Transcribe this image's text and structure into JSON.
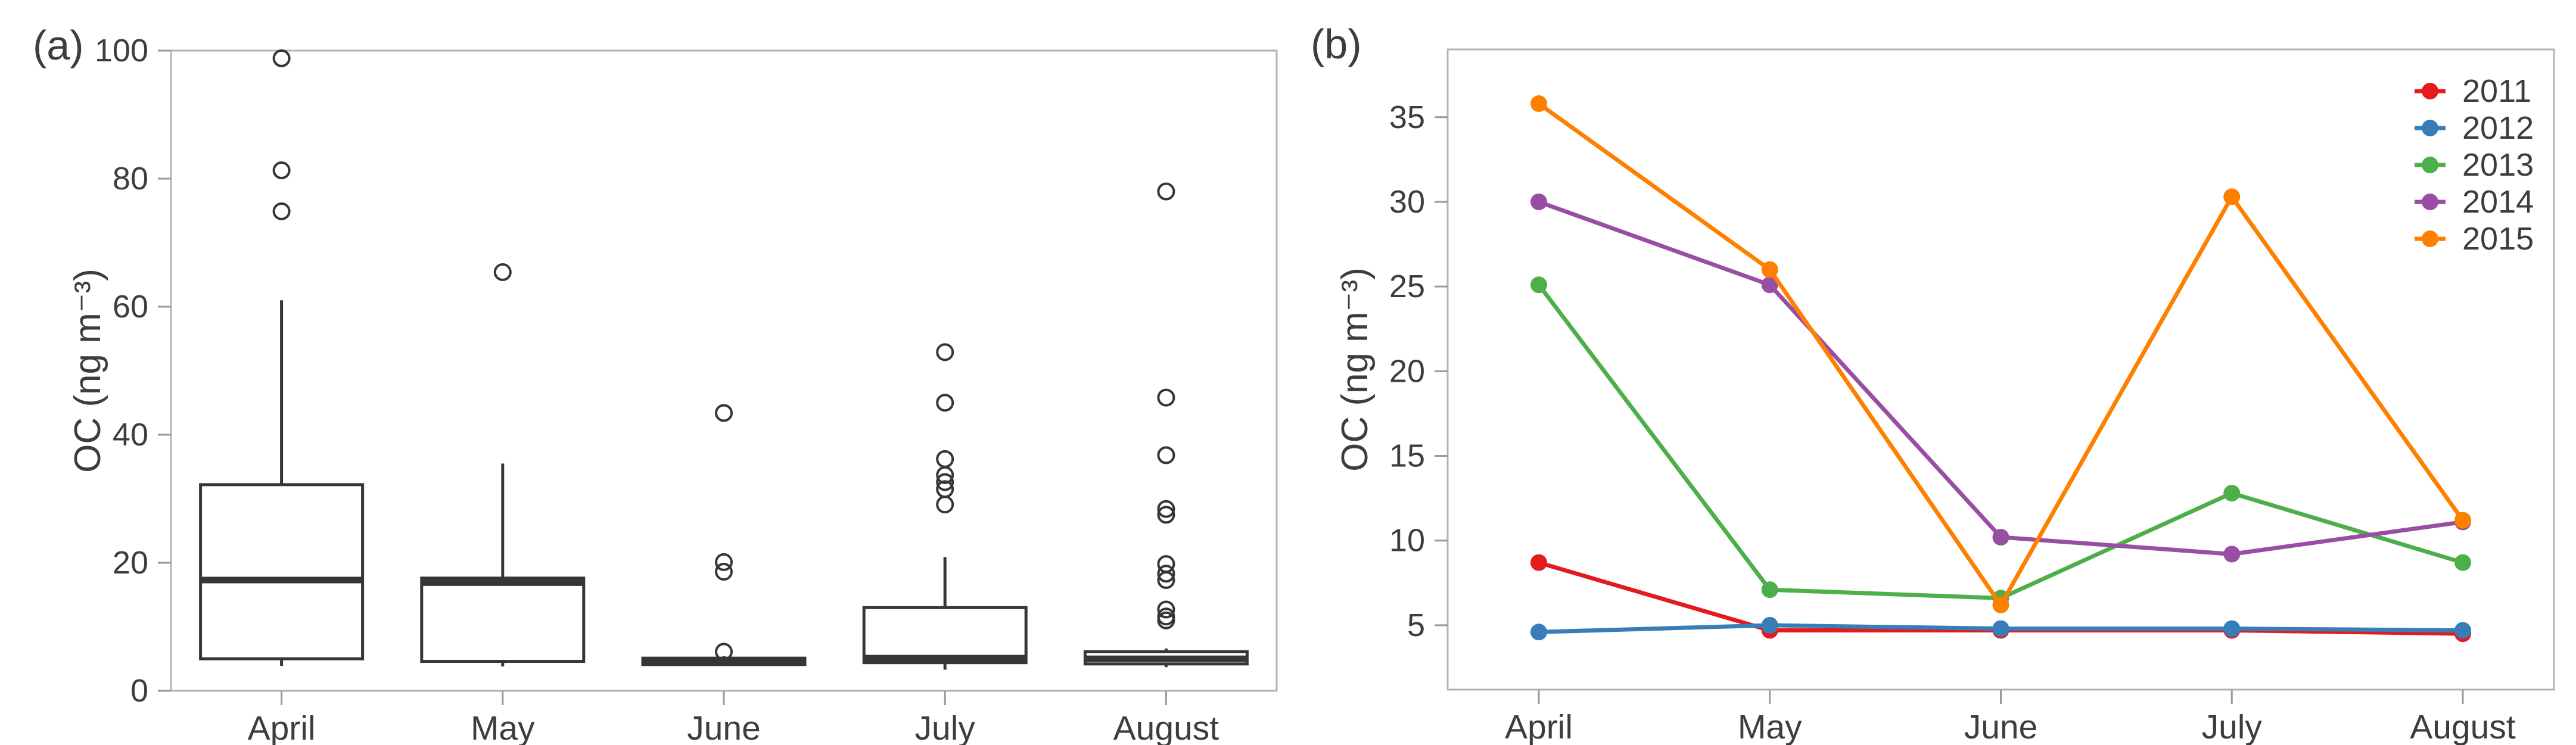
{
  "figure": {
    "background": "#ffffff",
    "text_color": "#3d3d3d",
    "frame_color": "#b3b3b3",
    "tick_color": "#999999"
  },
  "chart_data": [
    {
      "type": "boxplot",
      "panel_label": "(a)",
      "ylabel": "OC (ng m⁻³)",
      "xlabel": "",
      "categories": [
        "April",
        "May",
        "June",
        "July",
        "August"
      ],
      "yticks": [
        0,
        20,
        40,
        60,
        80,
        100
      ],
      "ylim": [
        0,
        100
      ],
      "grid": false,
      "box_color": "#363636",
      "boxes": [
        {
          "category": "April",
          "whislo": 3.9,
          "q1": 5.0,
          "med": 17.3,
          "q3": 32.2,
          "whishi": 61.0,
          "outliers": [
            74.9,
            81.3,
            98.8
          ]
        },
        {
          "category": "May",
          "whislo": 3.8,
          "q1": 4.6,
          "med": 16.9,
          "q3": 17.6,
          "whishi": 35.5,
          "outliers": [
            65.4
          ]
        },
        {
          "category": "June",
          "whislo": 3.9,
          "q1": 4.1,
          "med": 4.5,
          "q3": 5.1,
          "whishi": 5.4,
          "outliers": [
            6.1,
            18.6,
            20.1,
            43.4
          ]
        },
        {
          "category": "July",
          "whislo": 3.3,
          "q1": 4.4,
          "med": 5.1,
          "q3": 13.0,
          "whishi": 20.9,
          "outliers": [
            29.1,
            31.5,
            32.6,
            33.7,
            36.2,
            45.0,
            52.9
          ]
        },
        {
          "category": "August",
          "whislo": 3.7,
          "q1": 4.2,
          "med": 5.0,
          "q3": 6.1,
          "whishi": 6.6,
          "outliers": [
            11.0,
            11.6,
            12.7,
            17.3,
            18.3,
            19.8,
            27.5,
            28.4,
            36.8,
            45.8,
            78.0
          ]
        }
      ]
    },
    {
      "type": "line",
      "panel_label": "(b)",
      "ylabel": "OC (ng m⁻³)",
      "xlabel": "",
      "categories": [
        "April",
        "May",
        "June",
        "July",
        "August"
      ],
      "yticks": [
        5,
        10,
        15,
        20,
        25,
        30,
        35
      ],
      "ylim": [
        1.2,
        39
      ],
      "grid": false,
      "legend_position": "top-right",
      "series": [
        {
          "name": "2011",
          "color": "#e41a1c",
          "values": [
            8.7,
            4.7,
            4.7,
            4.7,
            4.5
          ]
        },
        {
          "name": "2012",
          "color": "#377eb8",
          "values": [
            4.6,
            5.0,
            4.8,
            4.8,
            4.7
          ]
        },
        {
          "name": "2013",
          "color": "#4daf4a",
          "values": [
            25.1,
            7.1,
            6.6,
            12.8,
            8.7
          ]
        },
        {
          "name": "2014",
          "color": "#984ea3",
          "values": [
            30.0,
            25.1,
            10.2,
            9.2,
            11.1
          ]
        },
        {
          "name": "2015",
          "color": "#ff7f00",
          "values": [
            35.8,
            26.0,
            6.2,
            30.3,
            11.2
          ]
        }
      ]
    }
  ]
}
